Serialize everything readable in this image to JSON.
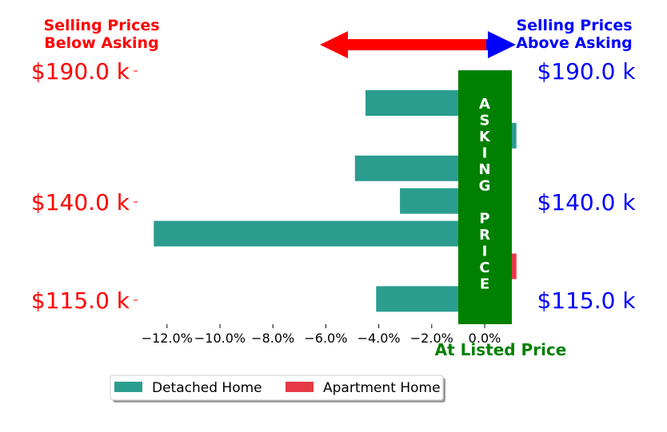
{
  "chart_data": {
    "type": "bar",
    "orientation": "horizontal",
    "series": [
      {
        "name": "Detached Home",
        "color": "#2a9d8f",
        "values": [
          -4.5,
          1.2,
          -4.9,
          -3.2,
          -12.5,
          null,
          -4.1
        ]
      },
      {
        "name": "Apartment Home",
        "color": "#e63946",
        "values": [
          null,
          null,
          null,
          null,
          null,
          1.2,
          null
        ]
      }
    ],
    "xlim": [
      -13.3,
      1.3
    ],
    "xticks": [
      "−12.0%",
      "−10.0%",
      "−8.0%",
      "−6.0%",
      "−4.0%",
      "−2.0%",
      "0.0%"
    ],
    "xtick_values": [
      -12,
      -10,
      -8,
      -6,
      -4,
      -2,
      0
    ],
    "y_left_labels": [
      "$190.0 k",
      "$140.0 k",
      "$115.0 k"
    ],
    "y_right_labels": [
      "$190.0 k",
      "$140.0 k",
      "$115.0 k"
    ],
    "header_left": [
      "Selling Prices",
      "Below Asking"
    ],
    "header_right": [
      "Selling Prices",
      "Above Asking"
    ],
    "band_label": [
      "A",
      "S",
      "K",
      "I",
      "N",
      "G",
      "",
      "P",
      "R",
      "I",
      "C",
      "E"
    ],
    "bottom_label": "At Listed Price",
    "legend_placement": "bottom-center",
    "colors": {
      "below": "#ff0000",
      "above": "#0000ff",
      "band": "#008000",
      "arrow_left": "#ff0000",
      "arrow_right": "#0000ff"
    }
  }
}
